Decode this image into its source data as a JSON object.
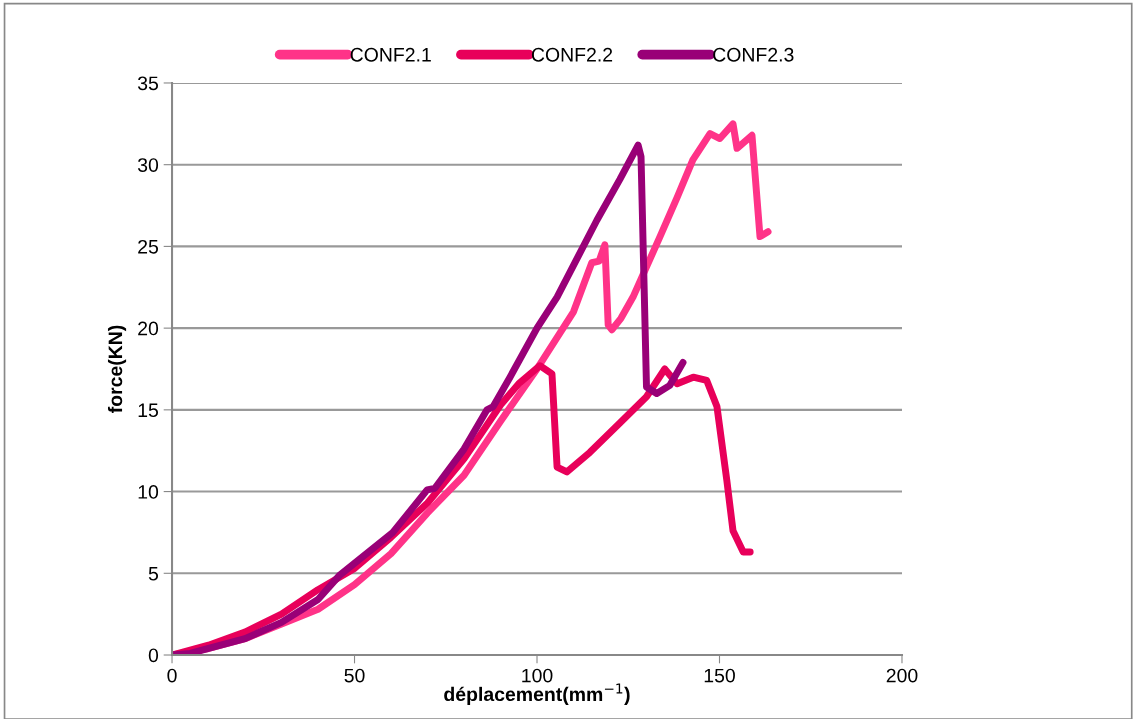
{
  "chart_data": {
    "type": "line",
    "xlabel": "déplacement(mm$^{−1}$)",
    "ylabel": "force(KN)",
    "xlim": [
      0,
      200
    ],
    "ylim": [
      0,
      35
    ],
    "xticks": [
      0,
      50,
      100,
      150,
      200
    ],
    "yticks": [
      0,
      5,
      10,
      15,
      20,
      25,
      30,
      35
    ],
    "grid": "y",
    "legend": "top",
    "marker": "none",
    "line_style": "solid",
    "series": [
      {
        "name": "CONF2.1",
        "color": "#ff3388",
        "x": [
          0,
          10,
          20,
          30,
          40,
          50,
          60,
          70,
          80,
          90,
          100,
          110,
          115,
          117,
          118.6,
          119.5,
          120.5,
          123,
          126.3,
          133.7,
          138.4,
          142.7,
          147.4,
          150.1,
          153.7,
          154.8,
          158.9,
          161.1,
          163.3
        ],
        "values": [
          0,
          0.4,
          1.0,
          1.9,
          2.8,
          4.3,
          6.2,
          8.7,
          11.0,
          14.3,
          17.5,
          21.0,
          24.0,
          24.1,
          25.1,
          20.2,
          19.9,
          20.6,
          21.9,
          25.6,
          28.0,
          30.3,
          31.9,
          31.6,
          32.5,
          31.0,
          31.8,
          25.6,
          25.9
        ]
      },
      {
        "name": "CONF2.2",
        "color": "#e8005a",
        "x": [
          0,
          10,
          20,
          30,
          40,
          50,
          60,
          70,
          80,
          90,
          95,
          100.8,
          104.1,
          105.5,
          108.2,
          114.5,
          122.7,
          130,
          135,
          138.4,
          142.8,
          146.5,
          149.3,
          152,
          153.7,
          156.5,
          158.4
        ],
        "values": [
          0,
          0.6,
          1.4,
          2.5,
          4.0,
          5.3,
          7.2,
          9.3,
          12.0,
          15.3,
          16.6,
          17.7,
          17.2,
          11.5,
          11.2,
          12.4,
          14.2,
          15.8,
          17.5,
          16.6,
          17.0,
          16.8,
          15.2,
          10.7,
          7.6,
          6.3,
          6.3
        ]
      },
      {
        "name": "CONF2.3",
        "color": "#990077",
        "x": [
          0,
          5,
          10,
          20,
          30,
          40,
          46,
          60.5,
          69.9,
          72,
          80,
          86.3,
          88,
          92.6,
          100,
          105.5,
          116.4,
          122.7,
          127.7,
          128.5,
          130,
          132.8,
          136.4,
          140
        ],
        "values": [
          0,
          0.1,
          0.4,
          1.0,
          2.0,
          3.4,
          4.9,
          7.5,
          10.1,
          10.2,
          12.6,
          15.0,
          15.2,
          17.0,
          20.0,
          21.9,
          26.6,
          29.1,
          31.2,
          30.5,
          16.4,
          16.0,
          16.5,
          17.9
        ]
      }
    ]
  }
}
